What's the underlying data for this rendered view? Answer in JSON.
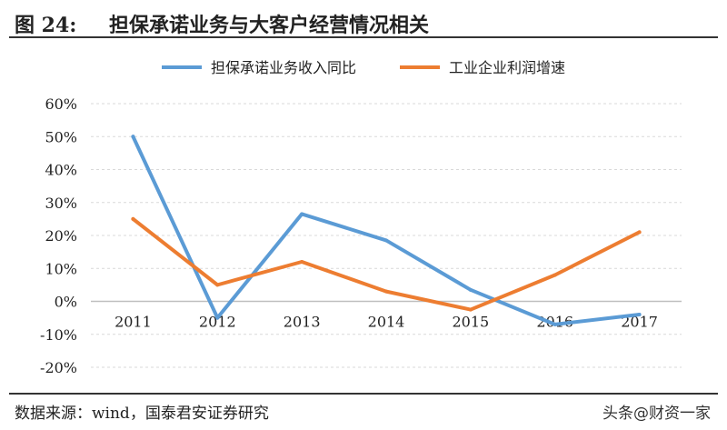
{
  "figure": {
    "label": "图 24:",
    "title": "担保承诺业务与大客户经营情况相关",
    "source": "数据来源：wind，国泰君安证券研究",
    "watermark": "头条@财资一家"
  },
  "chart_data": {
    "type": "line",
    "title": "",
    "xlabel": "",
    "ylabel": "",
    "categories": [
      "2011",
      "2012",
      "2013",
      "2014",
      "2015",
      "2016",
      "2017"
    ],
    "y_ticks": [
      "60%",
      "50%",
      "40%",
      "30%",
      "20%",
      "10%",
      "0%",
      "-10%",
      "-20%"
    ],
    "ylim": [
      -20,
      60
    ],
    "grid": true,
    "legend_position": "top",
    "series": [
      {
        "name": "担保承诺业务收入同比",
        "color": "#5B9BD5",
        "values": [
          50,
          -5,
          26.5,
          18.5,
          3.5,
          -7,
          -4
        ]
      },
      {
        "name": "工业企业利润增速",
        "color": "#ED7D31",
        "values": [
          25,
          5,
          12,
          3,
          -2.5,
          8,
          21
        ]
      }
    ]
  }
}
